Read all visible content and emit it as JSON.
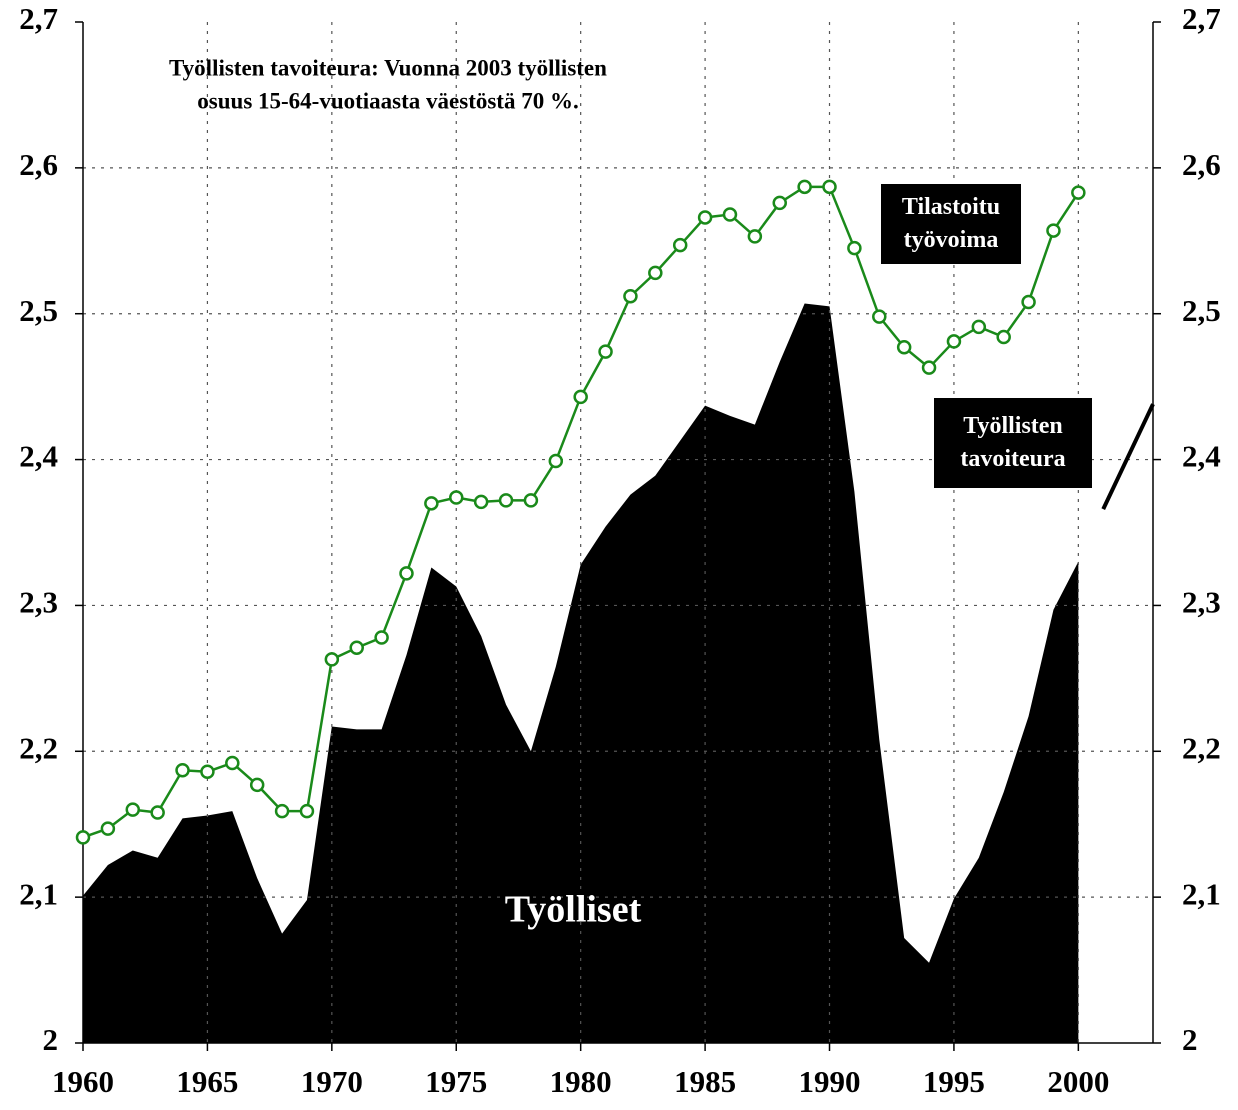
{
  "chart_data": {
    "type": "line",
    "note": [
      "Työllisten tavoiteura: Vuonna 2003 työllisten",
      "osuus 15-64-vuotiaasta väestöstä 70 %."
    ],
    "x": [
      1960,
      1961,
      1962,
      1963,
      1964,
      1965,
      1966,
      1967,
      1968,
      1969,
      1970,
      1971,
      1972,
      1973,
      1974,
      1975,
      1976,
      1977,
      1978,
      1979,
      1980,
      1981,
      1982,
      1983,
      1984,
      1985,
      1986,
      1987,
      1988,
      1989,
      1990,
      1991,
      1992,
      1993,
      1994,
      1995,
      1996,
      1997,
      1998,
      1999,
      2000
    ],
    "series": [
      {
        "name": "Työlliset",
        "kind": "area",
        "color": "#000000",
        "values": [
          2.101,
          2.122,
          2.132,
          2.127,
          2.154,
          2.156,
          2.159,
          2.113,
          2.075,
          2.098,
          2.217,
          2.215,
          2.215,
          2.266,
          2.326,
          2.313,
          2.279,
          2.232,
          2.2,
          2.258,
          2.328,
          2.354,
          2.376,
          2.389,
          2.413,
          2.437,
          2.43,
          2.424,
          2.467,
          2.507,
          2.505,
          2.378,
          2.208,
          2.072,
          2.055,
          2.099,
          2.127,
          2.172,
          2.224,
          2.297,
          2.33
        ]
      },
      {
        "name": "Tilastoitu työvoima",
        "kind": "line",
        "color": "#1a8a1a",
        "markers": true,
        "values": [
          2.141,
          2.147,
          2.16,
          2.158,
          2.187,
          2.186,
          2.192,
          2.177,
          2.159,
          2.159,
          2.263,
          2.271,
          2.278,
          2.322,
          2.37,
          2.374,
          2.371,
          2.372,
          2.372,
          2.399,
          2.443,
          2.474,
          2.512,
          2.528,
          2.547,
          2.566,
          2.568,
          2.553,
          2.576,
          2.587,
          2.587,
          2.545,
          2.498,
          2.477,
          2.463,
          2.481,
          2.491,
          2.484,
          2.508,
          2.557,
          2.583
        ]
      },
      {
        "name": "Työllisten tavoiteura",
        "kind": "line",
        "color": "#000000",
        "x": [
          2001,
          2003
        ],
        "values": [
          2.366,
          2.438
        ]
      }
    ],
    "xlim": [
      1960,
      2003
    ],
    "xticks": [
      1960,
      1965,
      1970,
      1975,
      1980,
      1985,
      1990,
      1995,
      2000
    ],
    "ylim": [
      2,
      2.7
    ],
    "yticks": [
      2,
      {
        "value": 2.1,
        "label": "2,1"
      },
      {
        "value": 2.2,
        "label": "2,2"
      },
      {
        "value": 2.3,
        "label": "2,3"
      },
      {
        "value": 2.4,
        "label": "2,4"
      },
      {
        "value": 2.5,
        "label": "2,5"
      },
      {
        "value": 2.6,
        "label": "2,6"
      },
      {
        "value": 2.7,
        "label": "2,7"
      }
    ],
    "grid": true
  }
}
